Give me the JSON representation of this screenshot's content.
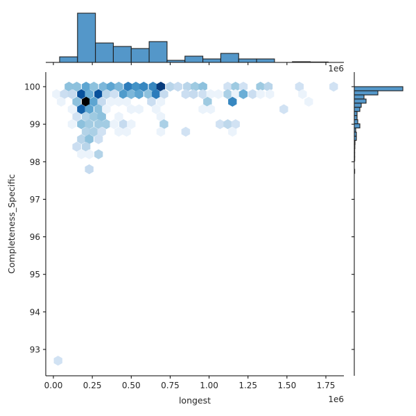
{
  "chart_data": {
    "type": "heatmap",
    "subtype": "hexbin-jointplot",
    "title": "",
    "xlabel": "longest",
    "ylabel": "Completeness_Specific",
    "x_offset_text": "1e6",
    "top_offset_text": "1e6",
    "xlim": [
      -40000,
      1860000
    ],
    "ylim": [
      92.35,
      100.35
    ],
    "x_ticks": [
      0.0,
      250000,
      500000,
      750000,
      1000000,
      1250000,
      1500000,
      1750000
    ],
    "x_tick_labels": [
      "0.00",
      "0.25",
      "0.50",
      "0.75",
      "1.00",
      "1.25",
      "1.50",
      "1.75"
    ],
    "y_ticks": [
      93,
      94,
      95,
      96,
      97,
      98,
      99,
      100
    ],
    "y_tick_labels": [
      "93",
      "94",
      "95",
      "96",
      "97",
      "98",
      "99",
      "100"
    ],
    "grid": false,
    "colormap": "Blues",
    "hexbins_note": "[x (1e6), y, relative density 0-1]",
    "hexbins": [
      [
        0.1,
        100.0,
        0.35
      ],
      [
        0.15,
        100.0,
        0.35
      ],
      [
        0.21,
        100.0,
        0.5
      ],
      [
        0.26,
        100.0,
        0.35
      ],
      [
        0.32,
        100.0,
        0.4
      ],
      [
        0.37,
        100.0,
        0.5
      ],
      [
        0.42,
        100.0,
        0.4
      ],
      [
        0.48,
        100.0,
        0.7
      ],
      [
        0.53,
        100.0,
        0.6
      ],
      [
        0.58,
        100.0,
        0.65
      ],
      [
        0.64,
        100.0,
        0.65
      ],
      [
        0.69,
        100.0,
        0.9
      ],
      [
        0.75,
        100.0,
        0.2
      ],
      [
        0.8,
        100.0,
        0.15
      ],
      [
        0.86,
        100.0,
        0.2
      ],
      [
        0.91,
        100.0,
        0.3
      ],
      [
        0.96,
        100.0,
        0.35
      ],
      [
        1.12,
        100.0,
        0.08
      ],
      [
        1.17,
        100.0,
        0.3
      ],
      [
        1.22,
        100.0,
        0.08
      ],
      [
        1.33,
        100.0,
        0.3
      ],
      [
        1.38,
        100.0,
        0.2
      ],
      [
        1.58,
        100.0,
        0.08
      ],
      [
        1.8,
        100.0,
        0.08
      ],
      [
        0.02,
        99.8,
        0.05
      ],
      [
        0.07,
        99.8,
        0.12
      ],
      [
        0.12,
        99.8,
        0.15
      ],
      [
        0.18,
        99.8,
        0.85
      ],
      [
        0.23,
        99.8,
        0.45
      ],
      [
        0.29,
        99.8,
        0.85
      ],
      [
        0.34,
        99.8,
        0.2
      ],
      [
        0.39,
        99.8,
        0.1
      ],
      [
        0.45,
        99.8,
        0.55
      ],
      [
        0.5,
        99.8,
        0.4
      ],
      [
        0.55,
        99.8,
        0.5
      ],
      [
        0.61,
        99.8,
        0.35
      ],
      [
        0.66,
        99.8,
        0.7
      ],
      [
        0.71,
        99.8,
        0.15
      ],
      [
        0.85,
        99.8,
        0.12
      ],
      [
        0.9,
        99.8,
        0.15
      ],
      [
        0.96,
        99.8,
        0.1
      ],
      [
        1.01,
        99.8,
        0.06
      ],
      [
        1.06,
        99.8,
        0.06
      ],
      [
        1.12,
        99.8,
        0.25
      ],
      [
        1.17,
        99.8,
        0.06
      ],
      [
        1.22,
        99.8,
        0.45
      ],
      [
        1.28,
        99.8,
        0.12
      ],
      [
        1.33,
        99.8,
        0.06
      ],
      [
        1.39,
        99.8,
        0.06
      ],
      [
        1.6,
        99.8,
        0.06
      ],
      [
        0.05,
        99.6,
        0.05
      ],
      [
        0.15,
        99.6,
        0.35
      ],
      [
        0.21,
        99.6,
        1.0
      ],
      [
        0.26,
        99.6,
        0.5
      ],
      [
        0.31,
        99.6,
        0.15
      ],
      [
        0.37,
        99.6,
        0.05
      ],
      [
        0.42,
        99.6,
        0.05
      ],
      [
        0.47,
        99.6,
        0.05
      ],
      [
        0.63,
        99.6,
        0.12
      ],
      [
        0.69,
        99.6,
        0.05
      ],
      [
        0.99,
        99.6,
        0.3
      ],
      [
        1.15,
        99.6,
        0.65
      ],
      [
        1.64,
        99.6,
        0.06
      ],
      [
        0.12,
        99.4,
        0.06
      ],
      [
        0.18,
        99.4,
        0.8
      ],
      [
        0.23,
        99.4,
        0.5
      ],
      [
        0.29,
        99.4,
        0.35
      ],
      [
        0.34,
        99.4,
        0.05
      ],
      [
        0.5,
        99.4,
        0.06
      ],
      [
        0.55,
        99.4,
        0.06
      ],
      [
        0.66,
        99.4,
        0.05
      ],
      [
        0.96,
        99.4,
        0.06
      ],
      [
        1.01,
        99.4,
        0.06
      ],
      [
        1.48,
        99.4,
        0.08
      ],
      [
        0.15,
        99.2,
        0.08
      ],
      [
        0.21,
        99.2,
        0.22
      ],
      [
        0.26,
        99.2,
        0.3
      ],
      [
        0.31,
        99.2,
        0.35
      ],
      [
        0.42,
        99.2,
        0.06
      ],
      [
        0.69,
        99.2,
        0.06
      ],
      [
        0.12,
        99.0,
        0.06
      ],
      [
        0.18,
        99.0,
        0.35
      ],
      [
        0.23,
        99.0,
        0.28
      ],
      [
        0.29,
        99.0,
        0.28
      ],
      [
        0.34,
        99.0,
        0.28
      ],
      [
        0.39,
        99.0,
        0.06
      ],
      [
        0.45,
        99.0,
        0.15
      ],
      [
        0.5,
        99.0,
        0.06
      ],
      [
        0.71,
        99.0,
        0.25
      ],
      [
        1.07,
        99.0,
        0.08
      ],
      [
        1.12,
        99.0,
        0.18
      ],
      [
        1.17,
        99.0,
        0.08
      ],
      [
        0.21,
        98.8,
        0.22
      ],
      [
        0.26,
        98.8,
        0.25
      ],
      [
        0.31,
        98.8,
        0.08
      ],
      [
        0.42,
        98.8,
        0.06
      ],
      [
        0.47,
        98.8,
        0.06
      ],
      [
        0.69,
        98.8,
        0.06
      ],
      [
        0.85,
        98.8,
        0.08
      ],
      [
        1.15,
        98.8,
        0.06
      ],
      [
        0.18,
        98.6,
        0.2
      ],
      [
        0.23,
        98.6,
        0.35
      ],
      [
        0.29,
        98.6,
        0.1
      ],
      [
        0.15,
        98.4,
        0.12
      ],
      [
        0.21,
        98.4,
        0.2
      ],
      [
        0.18,
        98.2,
        0.06
      ],
      [
        0.23,
        98.2,
        0.06
      ],
      [
        0.29,
        98.2,
        0.22
      ],
      [
        0.23,
        97.8,
        0.15
      ],
      [
        0.03,
        92.7,
        0.08
      ]
    ],
    "marginal_x_hist": {
      "bin_edges": [
        0.04,
        0.155,
        0.27,
        0.385,
        0.5,
        0.615,
        0.73,
        0.845,
        0.96,
        1.075,
        1.19,
        1.305,
        1.42,
        1.535,
        1.65,
        1.765
      ],
      "counts": [
        8,
        71,
        28,
        23,
        20,
        30,
        3,
        9,
        5,
        13,
        5,
        5,
        0,
        1,
        0.3
      ]
    },
    "marginal_y_hist": {
      "bin_edges": [
        100.0,
        99.89,
        99.78,
        99.67,
        99.56,
        99.45,
        99.34,
        99.23,
        99.12,
        99.01,
        98.9,
        98.79,
        98.68,
        98.57,
        98.46,
        98.35,
        98.24,
        98.13,
        98.02,
        97.91,
        97.8,
        97.69
      ],
      "counts": [
        70,
        34,
        14,
        17,
        10,
        8,
        4,
        4,
        5,
        8,
        2,
        3,
        3,
        1,
        0.8,
        0.6,
        0.5,
        0.5,
        0,
        0,
        0.6
      ]
    }
  }
}
